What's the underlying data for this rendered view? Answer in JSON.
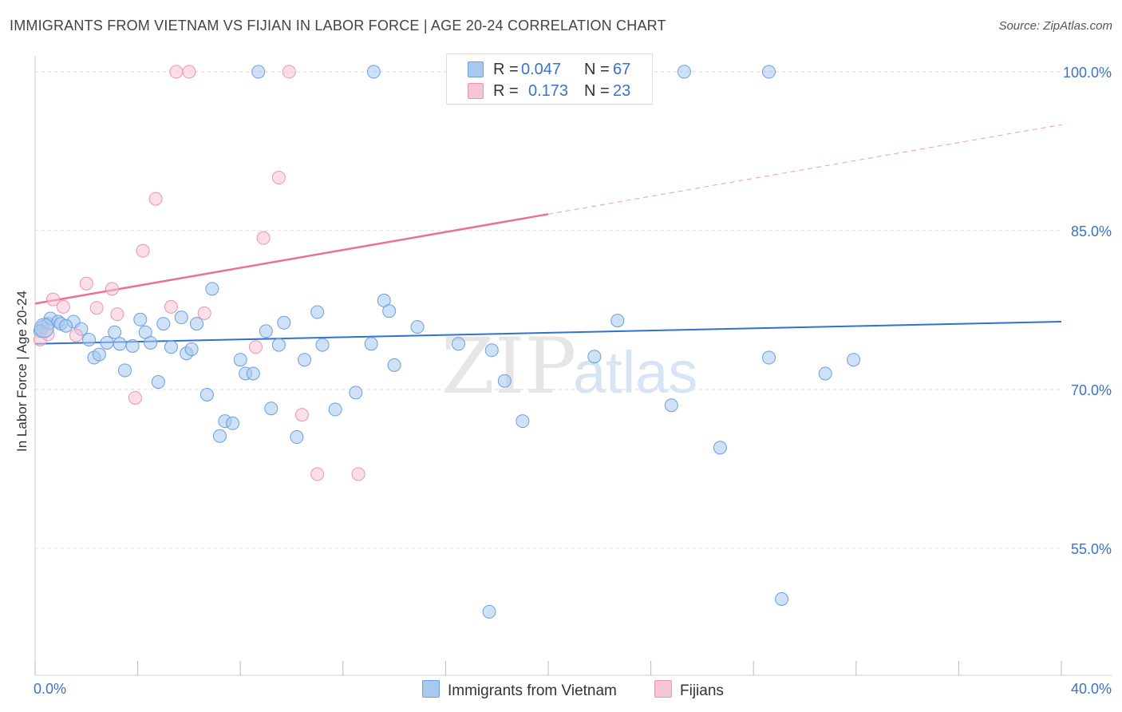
{
  "title": "IMMIGRANTS FROM VIETNAM VS FIJIAN IN LABOR FORCE | AGE 20-24 CORRELATION CHART",
  "source": "Source: ZipAtlas.com",
  "watermark": {
    "zip": "ZIP",
    "atlas": "atlas"
  },
  "colors": {
    "blue_fill": "#a8c8ee",
    "blue_stroke": "#6a9fe0",
    "blue_line": "#2f72d0",
    "pink_fill": "#f6c5d5",
    "pink_stroke": "#ee93b1",
    "pink_line": "#e8709a",
    "tick_text": "#3a73c8",
    "grid": "#dddddd"
  },
  "legend": {
    "rows": [
      {
        "r_label": "R =",
        "r_value": "0.047",
        "n_label": "N =",
        "n_value": "67",
        "color": "#a8c8ee",
        "stroke": "#6a9fe0"
      },
      {
        "r_label": "R =",
        "r_value": "0.173",
        "n_label": "N =",
        "n_value": "23",
        "color": "#f6c5d5",
        "stroke": "#ee93b1"
      }
    ]
  },
  "chart_data": {
    "type": "scatter",
    "title": "IMMIGRANTS FROM VIETNAM VS FIJIAN IN LABOR FORCE | AGE 20-24 CORRELATION CHART",
    "xlabel": "",
    "ylabel": "In Labor Force | Age 20-24",
    "xlim": [
      0,
      40
    ],
    "ylim": [
      43,
      101.5
    ],
    "x_tick_labels": [
      {
        "value": 0,
        "label": "0.0%"
      },
      {
        "value": 40,
        "label": "40.0%"
      }
    ],
    "y_tick_labels": [
      {
        "value": 55,
        "label": "55.0%"
      },
      {
        "value": 70,
        "label": "70.0%"
      },
      {
        "value": 85,
        "label": "85.0%"
      },
      {
        "value": 100,
        "label": "100.0%"
      }
    ],
    "series": [
      {
        "name": "Immigrants from Vietnam",
        "color": "#a8c8ee",
        "trend": {
          "x0": 0,
          "y0": 74.3,
          "x1": 40,
          "y1": 76.4,
          "dashed_from": null
        },
        "points": [
          [
            0.3,
            75.9
          ],
          [
            0.5,
            76.2
          ],
          [
            0.6,
            76.7
          ],
          [
            0.9,
            76.4
          ],
          [
            1.0,
            76.2
          ],
          [
            1.5,
            76.4
          ],
          [
            1.8,
            75.7
          ],
          [
            2.1,
            74.7
          ],
          [
            2.3,
            73.0
          ],
          [
            2.5,
            73.3
          ],
          [
            2.8,
            74.4
          ],
          [
            3.1,
            75.4
          ],
          [
            3.3,
            74.3
          ],
          [
            3.5,
            71.8
          ],
          [
            3.8,
            74.1
          ],
          [
            4.1,
            76.6
          ],
          [
            4.3,
            75.4
          ],
          [
            4.5,
            74.4
          ],
          [
            4.8,
            70.7
          ],
          [
            5.0,
            76.2
          ],
          [
            5.3,
            74.0
          ],
          [
            5.7,
            76.8
          ],
          [
            5.9,
            73.4
          ],
          [
            6.1,
            73.8
          ],
          [
            6.3,
            76.2
          ],
          [
            6.7,
            69.5
          ],
          [
            6.9,
            79.5
          ],
          [
            7.2,
            65.6
          ],
          [
            7.4,
            67.0
          ],
          [
            7.7,
            66.8
          ],
          [
            8.0,
            72.8
          ],
          [
            8.2,
            71.5
          ],
          [
            8.5,
            71.5
          ],
          [
            8.7,
            100.0
          ],
          [
            9.0,
            75.5
          ],
          [
            9.2,
            68.2
          ],
          [
            9.5,
            74.2
          ],
          [
            9.7,
            76.3
          ],
          [
            10.2,
            65.5
          ],
          [
            10.5,
            72.8
          ],
          [
            11.0,
            77.3
          ],
          [
            11.2,
            74.2
          ],
          [
            11.7,
            68.1
          ],
          [
            12.5,
            69.7
          ],
          [
            13.1,
            74.3
          ],
          [
            13.2,
            100.0
          ],
          [
            13.6,
            78.4
          ],
          [
            13.8,
            77.4
          ],
          [
            14.0,
            72.3
          ],
          [
            14.9,
            75.9
          ],
          [
            16.5,
            74.3
          ],
          [
            17.7,
            49.0
          ],
          [
            17.8,
            73.7
          ],
          [
            18.3,
            70.8
          ],
          [
            19.0,
            67.0
          ],
          [
            21.8,
            73.1
          ],
          [
            22.7,
            76.5
          ],
          [
            24.8,
            68.5
          ],
          [
            25.3,
            100.0
          ],
          [
            26.7,
            64.5
          ],
          [
            28.6,
            73.0
          ],
          [
            28.6,
            100.0
          ],
          [
            29.1,
            50.2
          ],
          [
            30.8,
            71.5
          ],
          [
            31.9,
            72.8
          ],
          [
            0.2,
            75.5
          ],
          [
            1.2,
            76.0
          ]
        ]
      },
      {
        "name": "Fijians",
        "color": "#f6c5d5",
        "trend": {
          "x0": 0,
          "y0": 78.1,
          "x1": 40,
          "y1": 95.0,
          "dashed_from": 20.0
        },
        "points": [
          [
            0.2,
            74.7
          ],
          [
            0.5,
            75.2
          ],
          [
            0.7,
            78.5
          ],
          [
            1.1,
            77.8
          ],
          [
            1.6,
            75.1
          ],
          [
            2.0,
            80.0
          ],
          [
            2.4,
            77.7
          ],
          [
            3.0,
            79.5
          ],
          [
            3.2,
            77.1
          ],
          [
            3.9,
            69.2
          ],
          [
            4.2,
            83.1
          ],
          [
            4.7,
            88.0
          ],
          [
            5.3,
            77.8
          ],
          [
            5.5,
            100.0
          ],
          [
            6.0,
            100.0
          ],
          [
            6.6,
            77.2
          ],
          [
            8.6,
            74.0
          ],
          [
            8.9,
            84.3
          ],
          [
            9.5,
            90.0
          ],
          [
            9.9,
            100.0
          ],
          [
            10.4,
            67.6
          ],
          [
            11.0,
            62.0
          ],
          [
            12.6,
            62.0
          ]
        ]
      }
    ]
  },
  "bottom_legend": [
    {
      "label": "Immigrants from Vietnam",
      "color": "#a8c8ee",
      "stroke": "#6a9fe0"
    },
    {
      "label": "Fijians",
      "color": "#f6c5d5",
      "stroke": "#ee93b1"
    }
  ]
}
